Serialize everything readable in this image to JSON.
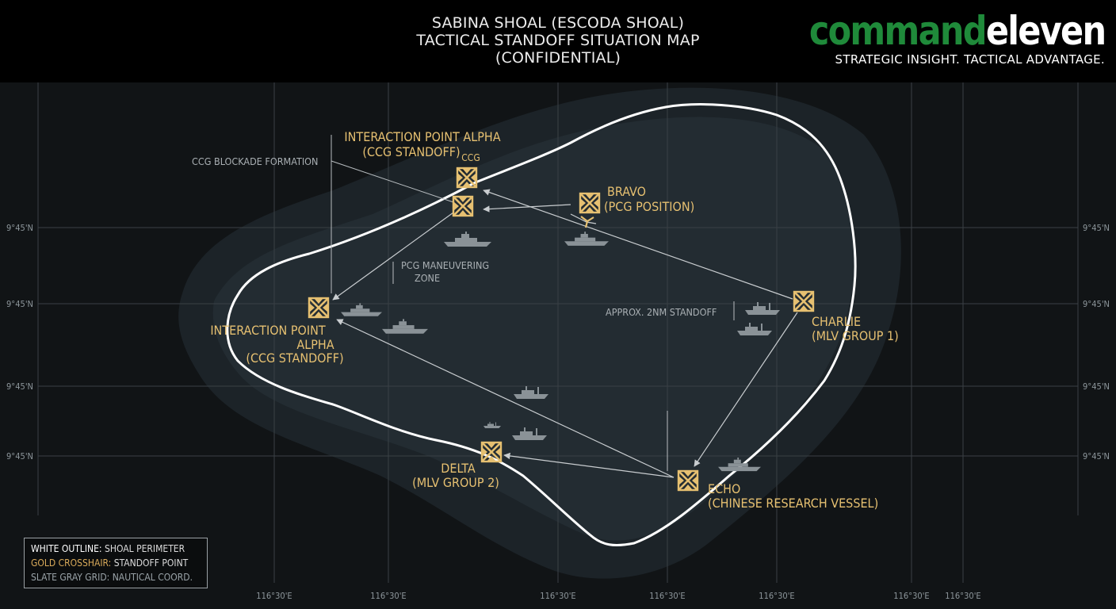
{
  "header": {
    "title_lines": [
      "SABINA SHOAL (ESCODA SHOAL)",
      "TACTICAL STANDOFF SITUATION MAP",
      "(CONFIDENTIAL)"
    ],
    "brand_command": "command",
    "brand_eleven": "eleven",
    "tagline": "STRATEGIC INSIGHT. TACTICAL ADVANTAGE."
  },
  "colors": {
    "background": "#111416",
    "header": "#000000",
    "gold": "#e6c071",
    "brand_green": "#1f8a3a",
    "perimeter": "#ffffff",
    "grid": "#3a4045"
  },
  "markers": [
    {
      "id": "alpha-top",
      "lines": [
        "INTERACTION POINT ALPHA",
        "(CCG STANDOFF)"
      ],
      "tag": "CCG"
    },
    {
      "id": "alpha-cluster",
      "lines": []
    },
    {
      "id": "bravo",
      "lines": [
        "BRAVO",
        "(PCG POSITION)"
      ]
    },
    {
      "id": "alpha-left",
      "lines": [
        "INTERACTION POINT",
        "ALPHA",
        "(CCG STANDOFF)"
      ]
    },
    {
      "id": "charlie",
      "lines": [
        "CHARLIE",
        "(MLV GROUP 1)"
      ]
    },
    {
      "id": "delta",
      "lines": [
        "DELTA",
        "(MLV GROUP 2)"
      ]
    },
    {
      "id": "echo",
      "lines": [
        "ECHO",
        "(CHINESE RESEARCH VESSEL)"
      ]
    }
  ],
  "annotations": {
    "ccg_blockade": "CCG BLOCKADE FORMATION",
    "pcg_zone": [
      "PCG MANEUVERING",
      "ZONE"
    ],
    "standoff": "APPROX. 2NM STANDOFF"
  },
  "grid": {
    "lat_label": "9°45'N",
    "lon_label": "116°30'E"
  },
  "legend": {
    "white_key": "WHITE OUTLINE:",
    "white_val": "SHOAL PERIMETER",
    "gold_key": "GOLD CROSSHAIR:",
    "gold_val": "STANDOFF POINT",
    "gray_key": "SLATE GRAY GRID:",
    "gray_val": "NAUTICAL COORD."
  }
}
